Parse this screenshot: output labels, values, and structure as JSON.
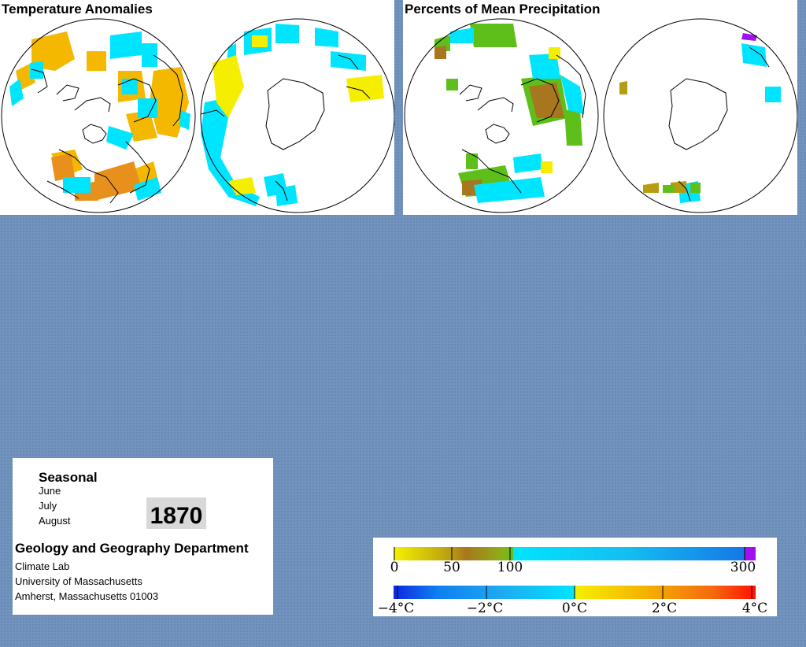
{
  "panels": {
    "temperature": {
      "title": "Temperature Anomalies"
    },
    "precipitation": {
      "title": "Percents of Mean Precipitation"
    }
  },
  "info": {
    "season": "Seasonal",
    "months": [
      "June",
      "July",
      "August"
    ],
    "year": "1870",
    "department": "Geology and Geography Department",
    "lab": "Climate Lab",
    "university": "University of Massachusetts",
    "address": "Amherst, Massachusetts 01003"
  },
  "legend": {
    "precipitation": {
      "ticks": [
        "0",
        "50",
        "100",
        "300"
      ]
    },
    "temperature": {
      "ticks": [
        "−4°C",
        "−2°C",
        "0°C",
        "2°C",
        "4°C"
      ]
    }
  },
  "colors": {
    "cyan": "#00e5ff",
    "blue": "#1590e8",
    "yellow": "#f5ee00",
    "orange": "#f0a020",
    "brown": "#a8761e",
    "olive": "#b89c10",
    "green": "#5fbf1a",
    "purple": "#a010f0",
    "red": "#ff3000",
    "background": "#7193bd"
  }
}
